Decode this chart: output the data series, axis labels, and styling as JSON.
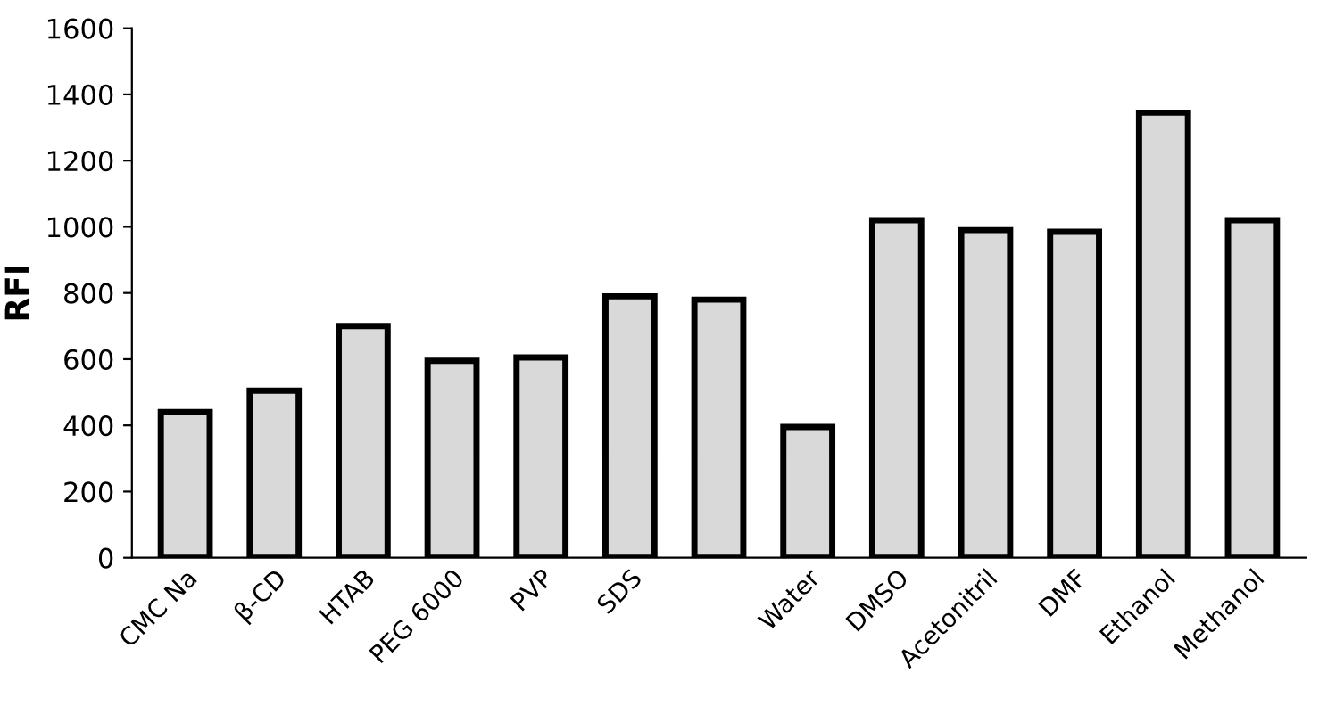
{
  "chart_data": {
    "type": "bar",
    "ylabel": "RFI",
    "categories": [
      "CMC Na",
      "β-CD",
      "HTAB",
      "PEG 6000",
      "PVP",
      "SDS",
      null,
      "Water",
      "DMSO",
      "Acetonitril",
      "DMF",
      "Ethanol",
      "Methanol"
    ],
    "values": [
      440,
      505,
      700,
      595,
      605,
      790,
      780,
      395,
      1020,
      990,
      985,
      1345,
      1020
    ],
    "color": "#d9d9d9",
    "ylim": [
      0,
      1600
    ],
    "yticks": [
      0,
      200,
      400,
      600,
      800,
      1000,
      1200,
      1400,
      1600
    ],
    "grid": false,
    "legend": false
  }
}
